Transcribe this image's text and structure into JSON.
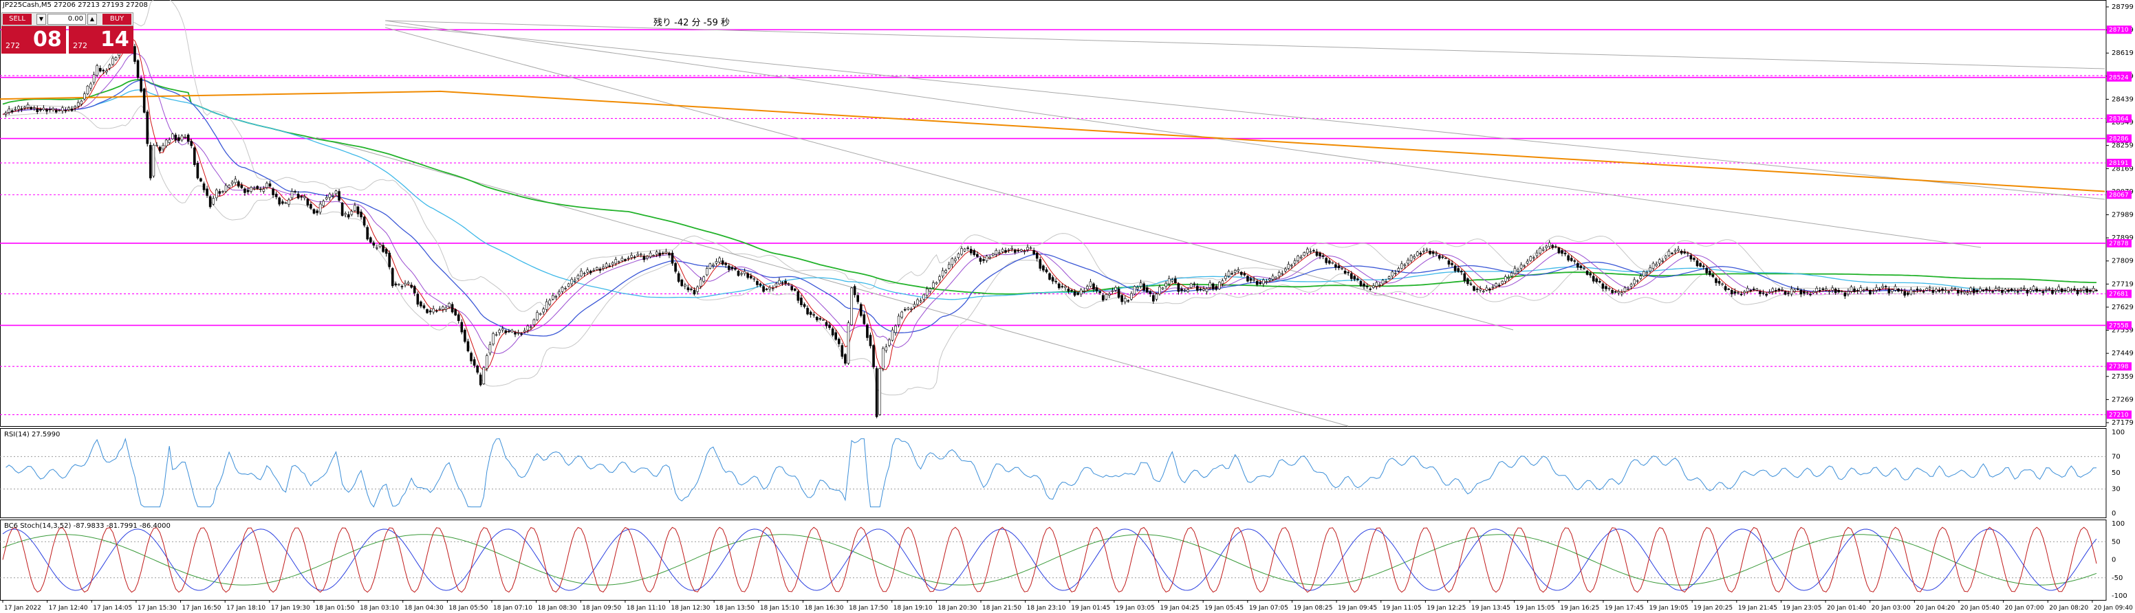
{
  "window": {
    "symbol_title": "JP225Cash,M5   27206 27213 27193 27208",
    "countdown": "残り -42 分 -59 秒"
  },
  "trade_panel": {
    "sell_label": "SELL",
    "buy_label": "BUY",
    "lot_value": "0.00",
    "sell_small": "272",
    "sell_big": "08",
    "buy_small": "272",
    "buy_big": "14",
    "sell_color": "#c8102e",
    "buy_color": "#c8102e"
  },
  "indicators": {
    "rsi_label": "RSI(14) 27.5990",
    "stoch_label": "BC6 Stoch(14,3,52) -87.9833 -81.7991 -86.4000"
  },
  "colors": {
    "level_magenta": "#ff00ff",
    "ma_green": "#22b22a",
    "ma_orange": "#f08a00",
    "ma_blue": "#3a57d6",
    "ma_cyan": "#3db8e8",
    "ma_purple": "#9b4dd1",
    "ma_red": "#d01010",
    "band_gray": "#c6c6c6",
    "trend_gray": "#a8a8a8",
    "rsi_blue": "#3b8ed8",
    "stoch_red": "#c01a1a",
    "stoch_blue": "#2a3fe0",
    "stoch_green": "#3a9a3a"
  },
  "chart_data": {
    "type": "candlestick",
    "symbol": "JP225Cash",
    "timeframe": "M5",
    "price_ticks": [
      "28799",
      "28709",
      "28619",
      "28529",
      "28439",
      "28349",
      "28259",
      "28169",
      "28079",
      "27989",
      "27899",
      "27809",
      "27719",
      "27629",
      "27539",
      "27449",
      "27359",
      "27269",
      "27179"
    ],
    "price_range": [
      27179,
      28799
    ],
    "level_labels": [
      {
        "label": "28710",
        "value": 28710,
        "style": "solid"
      },
      {
        "label": "28531",
        "value": 28531,
        "style": "dotted"
      },
      {
        "label": "28524",
        "value": 28524,
        "style": "solid"
      },
      {
        "label": "28364",
        "value": 28364,
        "style": "dotted"
      },
      {
        "label": "28286",
        "value": 28286,
        "style": "solid"
      },
      {
        "label": "28191",
        "value": 28191,
        "style": "dotted"
      },
      {
        "label": "28067",
        "value": 28067,
        "style": "dotted"
      },
      {
        "label": "27878",
        "value": 27878,
        "style": "solid"
      },
      {
        "label": "27681",
        "value": 27681,
        "style": "dotted"
      },
      {
        "label": "27558",
        "value": 27558,
        "style": "solid"
      },
      {
        "label": "27398",
        "value": 27398,
        "style": "dotted"
      },
      {
        "label": "27210",
        "value": 27210,
        "style": "dotted"
      }
    ],
    "close_path": [
      [
        0,
        28380
      ],
      [
        2,
        28395
      ],
      [
        4,
        28400
      ],
      [
        6,
        28405
      ],
      [
        8,
        28408
      ],
      [
        10,
        28402
      ],
      [
        12,
        28398
      ],
      [
        14,
        28400
      ],
      [
        16,
        28396
      ],
      [
        18,
        28394
      ],
      [
        20,
        28398
      ],
      [
        22,
        28405
      ],
      [
        24,
        28420
      ],
      [
        26,
        28460
      ],
      [
        28,
        28505
      ],
      [
        30,
        28560
      ],
      [
        32,
        28545
      ],
      [
        34,
        28575
      ],
      [
        36,
        28610
      ],
      [
        38,
        28660
      ],
      [
        39,
        28740
      ],
      [
        40,
        28700
      ],
      [
        42,
        28590
      ],
      [
        43,
        28520
      ],
      [
        44,
        28480
      ],
      [
        45,
        28390
      ],
      [
        46,
        28260
      ],
      [
        47,
        28140
      ],
      [
        48,
        28260
      ],
      [
        50,
        28245
      ],
      [
        52,
        28270
      ],
      [
        54,
        28300
      ],
      [
        56,
        28280
      ],
      [
        58,
        28300
      ],
      [
        60,
        28250
      ],
      [
        62,
        28130
      ],
      [
        64,
        28090
      ],
      [
        66,
        28030
      ],
      [
        68,
        28080
      ],
      [
        70,
        28080
      ],
      [
        72,
        28110
      ],
      [
        74,
        28118
      ],
      [
        76,
        28090
      ],
      [
        78,
        28080
      ],
      [
        80,
        28100
      ],
      [
        82,
        28080
      ],
      [
        84,
        28110
      ],
      [
        86,
        28070
      ],
      [
        88,
        28040
      ],
      [
        90,
        28030
      ],
      [
        92,
        28080
      ],
      [
        94,
        28060
      ],
      [
        96,
        28050
      ],
      [
        98,
        28010
      ],
      [
        100,
        27999
      ],
      [
        102,
        28050
      ],
      [
        104,
        28062
      ],
      [
        106,
        28080
      ],
      [
        108,
        27990
      ],
      [
        110,
        27990
      ],
      [
        112,
        28020
      ],
      [
        114,
        27980
      ],
      [
        116,
        27900
      ],
      [
        118,
        27860
      ],
      [
        120,
        27870
      ],
      [
        122,
        27840
      ],
      [
        124,
        27720
      ],
      [
        126,
        27710
      ],
      [
        128,
        27720
      ],
      [
        130,
        27710
      ],
      [
        132,
        27650
      ],
      [
        134,
        27620
      ],
      [
        136,
        27610
      ],
      [
        138,
        27620
      ],
      [
        140,
        27620
      ],
      [
        142,
        27640
      ],
      [
        144,
        27600
      ],
      [
        146,
        27540
      ],
      [
        148,
        27450
      ],
      [
        150,
        27400
      ],
      [
        152,
        27330
      ],
      [
        154,
        27450
      ],
      [
        156,
        27520
      ],
      [
        158,
        27540
      ],
      [
        160,
        27535
      ],
      [
        162,
        27530
      ],
      [
        164,
        27525
      ],
      [
        166,
        27540
      ],
      [
        168,
        27560
      ],
      [
        170,
        27600
      ],
      [
        172,
        27620
      ],
      [
        174,
        27660
      ],
      [
        176,
        27680
      ],
      [
        178,
        27700
      ],
      [
        180,
        27720
      ],
      [
        182,
        27740
      ],
      [
        184,
        27760
      ],
      [
        186,
        27770
      ],
      [
        188,
        27775
      ],
      [
        190,
        27780
      ],
      [
        192,
        27790
      ],
      [
        194,
        27800
      ],
      [
        196,
        27810
      ],
      [
        198,
        27820
      ],
      [
        200,
        27825
      ],
      [
        202,
        27835
      ],
      [
        204,
        27820
      ],
      [
        206,
        27830
      ],
      [
        208,
        27840
      ],
      [
        210,
        27840
      ],
      [
        212,
        27840
      ],
      [
        214,
        27760
      ],
      [
        216,
        27710
      ],
      [
        218,
        27700
      ],
      [
        220,
        27690
      ],
      [
        222,
        27730
      ],
      [
        224,
        27780
      ],
      [
        226,
        27800
      ],
      [
        228,
        27810
      ],
      [
        230,
        27790
      ],
      [
        232,
        27780
      ],
      [
        234,
        27760
      ],
      [
        236,
        27760
      ],
      [
        238,
        27740
      ],
      [
        240,
        27720
      ],
      [
        242,
        27700
      ],
      [
        244,
        27700
      ],
      [
        246,
        27720
      ],
      [
        248,
        27730
      ],
      [
        250,
        27710
      ],
      [
        252,
        27690
      ],
      [
        254,
        27640
      ],
      [
        256,
        27610
      ],
      [
        258,
        27590
      ],
      [
        260,
        27580
      ],
      [
        262,
        27560
      ],
      [
        264,
        27530
      ],
      [
        266,
        27480
      ],
      [
        268,
        27410
      ],
      [
        270,
        27710
      ],
      [
        272,
        27640
      ],
      [
        274,
        27560
      ],
      [
        276,
        27480
      ],
      [
        277,
        27390
      ],
      [
        278,
        27210
      ],
      [
        279,
        27390
      ],
      [
        280,
        27460
      ],
      [
        282,
        27500
      ],
      [
        284,
        27560
      ],
      [
        286,
        27620
      ],
      [
        288,
        27620
      ],
      [
        290,
        27640
      ],
      [
        292,
        27660
      ],
      [
        294,
        27690
      ],
      [
        296,
        27720
      ],
      [
        298,
        27750
      ],
      [
        300,
        27780
      ],
      [
        302,
        27810
      ],
      [
        304,
        27835
      ],
      [
        306,
        27860
      ],
      [
        308,
        27850
      ],
      [
        310,
        27820
      ],
      [
        312,
        27810
      ],
      [
        314,
        27830
      ],
      [
        316,
        27840
      ],
      [
        318,
        27850
      ],
      [
        320,
        27855
      ],
      [
        322,
        27850
      ],
      [
        324,
        27845
      ],
      [
        326,
        27860
      ],
      [
        328,
        27840
      ],
      [
        330,
        27790
      ],
      [
        332,
        27760
      ],
      [
        334,
        27730
      ],
      [
        336,
        27710
      ],
      [
        338,
        27700
      ],
      [
        340,
        27690
      ],
      [
        342,
        27680
      ],
      [
        344,
        27700
      ],
      [
        346,
        27720
      ],
      [
        348,
        27690
      ],
      [
        350,
        27660
      ],
      [
        352,
        27690
      ],
      [
        354,
        27700
      ],
      [
        356,
        27650
      ],
      [
        358,
        27660
      ],
      [
        360,
        27700
      ],
      [
        362,
        27720
      ],
      [
        364,
        27690
      ],
      [
        366,
        27660
      ],
      [
        368,
        27700
      ],
      [
        370,
        27720
      ],
      [
        372,
        27740
      ],
      [
        374,
        27700
      ],
      [
        376,
        27690
      ],
      [
        378,
        27720
      ],
      [
        380,
        27700
      ],
      [
        382,
        27690
      ],
      [
        384,
        27720
      ],
      [
        386,
        27700
      ],
      [
        388,
        27740
      ],
      [
        390,
        27760
      ],
      [
        392,
        27770
      ],
      [
        394,
        27760
      ],
      [
        396,
        27740
      ],
      [
        398,
        27730
      ],
      [
        400,
        27720
      ],
      [
        402,
        27735
      ],
      [
        404,
        27740
      ],
      [
        406,
        27760
      ],
      [
        408,
        27780
      ],
      [
        410,
        27800
      ],
      [
        412,
        27820
      ],
      [
        414,
        27840
      ],
      [
        416,
        27850
      ],
      [
        418,
        27840
      ],
      [
        420,
        27820
      ],
      [
        422,
        27800
      ],
      [
        424,
        27790
      ],
      [
        426,
        27770
      ],
      [
        428,
        27760
      ],
      [
        430,
        27740
      ],
      [
        432,
        27720
      ],
      [
        434,
        27700
      ],
      [
        436,
        27710
      ],
      [
        438,
        27720
      ],
      [
        440,
        27740
      ],
      [
        442,
        27760
      ],
      [
        444,
        27780
      ],
      [
        446,
        27800
      ],
      [
        448,
        27820
      ],
      [
        450,
        27840
      ],
      [
        452,
        27850
      ],
      [
        454,
        27845
      ],
      [
        456,
        27830
      ],
      [
        458,
        27820
      ],
      [
        460,
        27800
      ],
      [
        462,
        27780
      ],
      [
        464,
        27760
      ],
      [
        466,
        27720
      ],
      [
        468,
        27700
      ],
      [
        470,
        27690
      ],
      [
        472,
        27700
      ],
      [
        474,
        27710
      ],
      [
        476,
        27720
      ],
      [
        478,
        27740
      ],
      [
        480,
        27760
      ],
      [
        482,
        27780
      ],
      [
        484,
        27800
      ],
      [
        486,
        27820
      ],
      [
        488,
        27840
      ],
      [
        490,
        27860
      ],
      [
        492,
        27870
      ],
      [
        494,
        27860
      ],
      [
        496,
        27840
      ],
      [
        498,
        27820
      ],
      [
        500,
        27800
      ],
      [
        502,
        27780
      ],
      [
        504,
        27760
      ],
      [
        506,
        27740
      ],
      [
        508,
        27720
      ],
      [
        510,
        27700
      ],
      [
        512,
        27690
      ],
      [
        514,
        27680
      ],
      [
        516,
        27700
      ],
      [
        518,
        27720
      ],
      [
        520,
        27740
      ],
      [
        522,
        27760
      ],
      [
        524,
        27780
      ],
      [
        526,
        27800
      ],
      [
        528,
        27820
      ],
      [
        530,
        27840
      ],
      [
        532,
        27850
      ],
      [
        534,
        27845
      ],
      [
        536,
        27830
      ],
      [
        538,
        27810
      ],
      [
        540,
        27790
      ],
      [
        542,
        27770
      ],
      [
        544,
        27740
      ],
      [
        546,
        27720
      ],
      [
        548,
        27700
      ],
      [
        550,
        27690
      ],
      [
        552,
        27680
      ],
      [
        554,
        27690
      ],
      [
        556,
        27700
      ],
      [
        558,
        27690
      ],
      [
        560,
        27680
      ],
      [
        562,
        27690
      ],
      [
        564,
        27700
      ],
      [
        566,
        27690
      ],
      [
        568,
        27680
      ],
      [
        570,
        27700
      ],
      [
        572,
        27690
      ],
      [
        574,
        27680
      ],
      [
        576,
        27690
      ],
      [
        578,
        27700
      ],
      [
        580,
        27690
      ],
      [
        582,
        27700
      ],
      [
        584,
        27690
      ],
      [
        586,
        27680
      ],
      [
        588,
        27700
      ],
      [
        590,
        27690
      ],
      [
        592,
        27700
      ],
      [
        594,
        27690
      ],
      [
        596,
        27700
      ],
      [
        598,
        27710
      ],
      [
        600,
        27690
      ],
      [
        602,
        27700
      ],
      [
        604,
        27690
      ],
      [
        606,
        27680
      ],
      [
        608,
        27700
      ],
      [
        610,
        27690
      ],
      [
        612,
        27700
      ],
      [
        614,
        27690
      ],
      [
        616,
        27700
      ],
      [
        618,
        27690
      ],
      [
        620,
        27700
      ],
      [
        622,
        27690
      ],
      [
        624,
        27680
      ],
      [
        626,
        27700
      ],
      [
        628,
        27690
      ],
      [
        630,
        27700
      ],
      [
        632,
        27690
      ],
      [
        634,
        27700
      ],
      [
        636,
        27690
      ],
      [
        638,
        27700
      ],
      [
        640,
        27690
      ],
      [
        642,
        27700
      ],
      [
        644,
        27690
      ],
      [
        646,
        27700
      ],
      [
        648,
        27690
      ],
      [
        650,
        27700
      ],
      [
        652,
        27690
      ],
      [
        654,
        27700
      ],
      [
        656,
        27690
      ],
      [
        658,
        27700
      ],
      [
        660,
        27690
      ],
      [
        662,
        27700
      ],
      [
        664,
        27690
      ],
      [
        666,
        27700
      ]
    ],
    "time_ticks": [
      "17 Jan 2022",
      "17 Jan 12:40",
      "17 Jan 14:05",
      "17 Jan 15:30",
      "17 Jan 16:50",
      "17 Jan 18:10",
      "17 Jan 19:30",
      "18 Jan 01:50",
      "18 Jan 03:10",
      "18 Jan 04:30",
      "18 Jan 05:50",
      "18 Jan 07:10",
      "18 Jan 08:30",
      "18 Jan 09:50",
      "18 Jan 11:10",
      "18 Jan 12:30",
      "18 Jan 13:50",
      "18 Jan 15:10",
      "18 Jan 16:30",
      "18 Jan 17:50",
      "18 Jan 19:10",
      "18 Jan 20:30",
      "18 Jan 21:50",
      "18 Jan 23:10",
      "19 Jan 01:45",
      "19 Jan 03:05",
      "19 Jan 04:25",
      "19 Jan 05:45",
      "19 Jan 07:05",
      "19 Jan 08:25",
      "19 Jan 09:45",
      "19 Jan 11:05",
      "19 Jan 12:25",
      "19 Jan 13:45",
      "19 Jan 15:05",
      "19 Jan 16:25",
      "19 Jan 17:45",
      "19 Jan 19:05",
      "19 Jan 20:25",
      "19 Jan 21:45",
      "19 Jan 23:05",
      "20 Jan 01:40",
      "20 Jan 03:00",
      "20 Jan 04:20",
      "20 Jan 05:40",
      "20 Jan 07:00",
      "20 Jan 08:20",
      "20 Jan 09:40"
    ],
    "rsi_ticks": [
      "100",
      "70",
      "50",
      "30",
      "0"
    ],
    "stoch_ticks": [
      "100",
      "50",
      "0",
      "-50",
      "-100"
    ]
  }
}
